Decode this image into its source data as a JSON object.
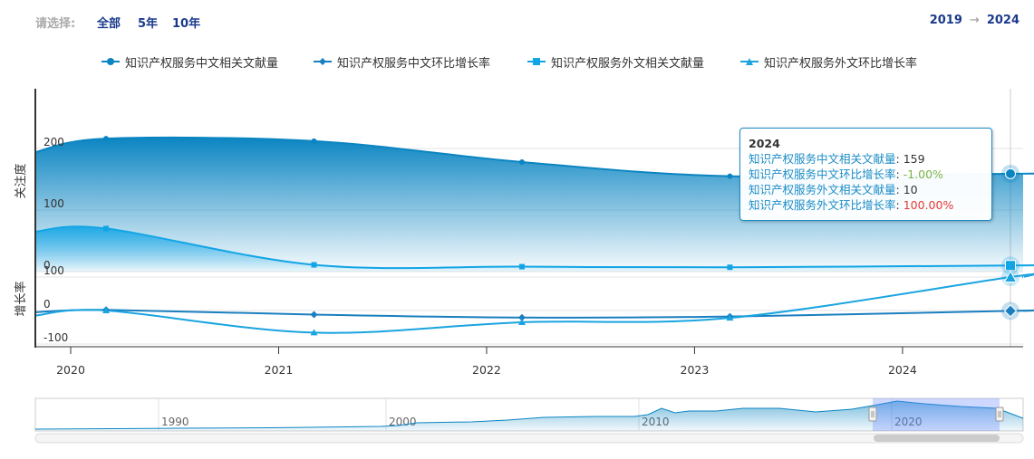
{
  "toolbar": {
    "select_label": "请选择:",
    "range_buttons": [
      "全部",
      "5年",
      "10年"
    ],
    "range_from": "2019",
    "range_arrow": "→",
    "range_to": "2024"
  },
  "colors": {
    "s1": "#0b85c2",
    "s2": "#1a7fbf",
    "s3": "#12a5e6",
    "s4": "#1aa4e0",
    "negative": "#7cb342",
    "positive_red": "#e53935"
  },
  "chart_data": {
    "type": "area",
    "x": [
      2019,
      2020,
      2021,
      2022,
      2023,
      2024
    ],
    "panels": [
      {
        "ylabel": "关注度",
        "yticks": [
          0,
          100,
          200
        ],
        "ylim": [
          0,
          240
        ]
      },
      {
        "ylabel": "增长率",
        "yticks": [
          -100,
          0,
          100
        ],
        "ylim": [
          -120,
          120
        ]
      }
    ],
    "series": [
      {
        "name": "知识产权服务中文相关文献量",
        "panel": 0,
        "marker": "circle",
        "type": "area",
        "values": [
          194,
          216,
          212,
          178,
          155,
          159
        ]
      },
      {
        "name": "知识产权服务中文环比增长率",
        "panel": 1,
        "marker": "diamond",
        "type": "line",
        "values": [
          -5,
          2,
          -12,
          -21,
          -18,
          -1
        ]
      },
      {
        "name": "知识产权服务外文相关文献量",
        "panel": 0,
        "marker": "square",
        "type": "area",
        "values": [
          65,
          70,
          11,
          8,
          7,
          10
        ]
      },
      {
        "name": "知识产权服务外文环比增长率",
        "panel": 1,
        "marker": "triangle",
        "type": "line",
        "values": [
          -15,
          0,
          -66,
          -35,
          -22,
          100
        ]
      }
    ],
    "xticks": [
      "2020",
      "2021",
      "2022",
      "2023",
      "2024"
    ],
    "navigator_ticks": [
      "1990",
      "2000",
      "2010",
      "2020"
    ],
    "legend_position": "top-center",
    "grid": true
  },
  "tooltip": {
    "title": "2024",
    "rows": [
      {
        "name": "知识产权服务中文相关文献量",
        "sep": ":",
        "value": "159",
        "color": "#333333"
      },
      {
        "name": "知识产权服务中文环比增长率",
        "sep": ":",
        "value": "-1.00%",
        "color": "#7cb342"
      },
      {
        "name": "知识产权服务外文相关文献量",
        "sep": ":",
        "value": "10",
        "color": "#333333"
      },
      {
        "name": "知识产权服务外文环比增长率",
        "sep": ":",
        "value": "100.00%",
        "color": "#e53935"
      }
    ]
  }
}
